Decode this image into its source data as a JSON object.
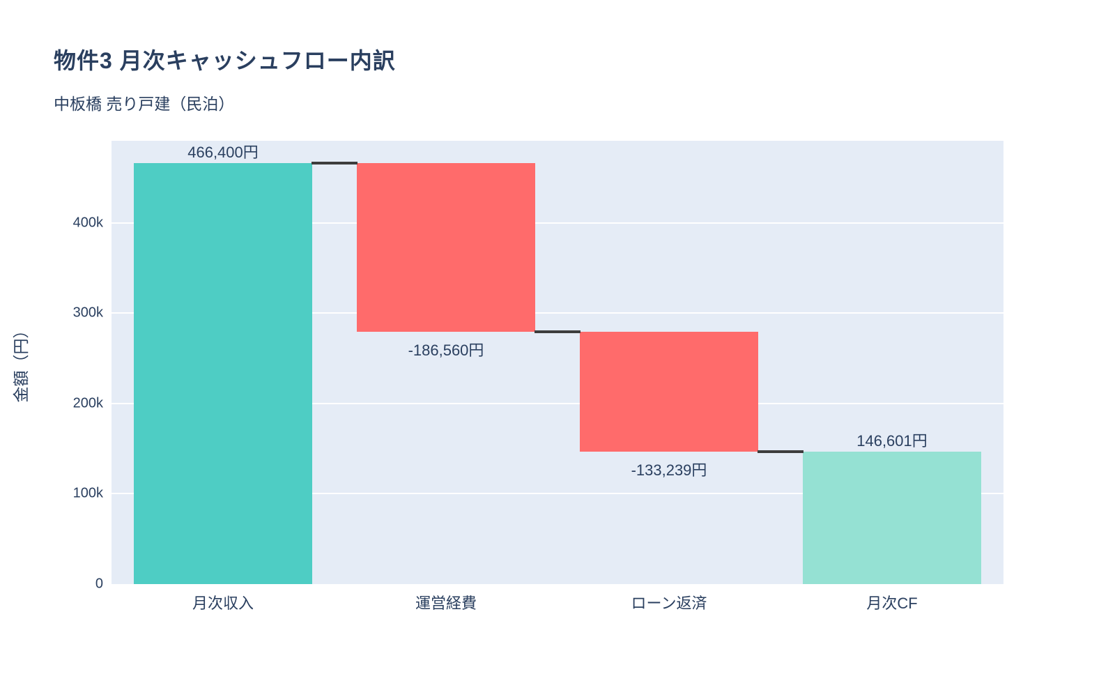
{
  "header": {
    "title": "物件3 月次キャッシュフロー内訳",
    "subtitle": "中板橋 売り戸建（民泊）"
  },
  "chart_data": {
    "type": "bar",
    "subtype": "waterfall",
    "title": "物件3 月次キャッシュフロー内訳",
    "subtitle": "中板橋 売り戸建（民泊）",
    "xlabel": "",
    "ylabel": "金額（円）",
    "categories": [
      "月次収入",
      "運営経費",
      "ローン返済",
      "月次CF"
    ],
    "values": [
      466400,
      -186560,
      -133239,
      146601
    ],
    "measures": [
      "relative",
      "relative",
      "relative",
      "total"
    ],
    "bar_labels": [
      "466,400円",
      "-186,560円",
      "-133,239円",
      "146,601円"
    ],
    "running_totals": [
      466400,
      279840,
      146601,
      146601
    ],
    "ylim": [
      0,
      491000
    ],
    "yticks": [
      {
        "value": 0,
        "label": "0"
      },
      {
        "value": 100000,
        "label": "100k"
      },
      {
        "value": 200000,
        "label": "200k"
      },
      {
        "value": 300000,
        "label": "300k"
      },
      {
        "value": 400000,
        "label": "400k"
      }
    ],
    "grid": "horizontal-white",
    "legend": "none",
    "colors": {
      "increasing": "#4ECDC4",
      "decreasing": "#FF6B6B",
      "total": "#95E1D3",
      "connector": "#3D3D3D",
      "plot_bg": "#E5ECF6",
      "gridline": "#FFFFFF",
      "text": "#2a3f5f"
    }
  }
}
